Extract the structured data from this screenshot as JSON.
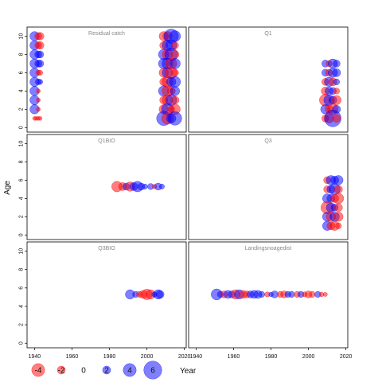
{
  "chart_data": {
    "type": "scatter",
    "subtype": "bubble-residuals",
    "xlabel": "Year",
    "ylabel": "Age",
    "xlim": [
      1936,
      2021
    ],
    "ylim": [
      -0.5,
      11
    ],
    "x_ticks": [
      1940,
      1960,
      1980,
      2000,
      2020
    ],
    "y_ticks": [
      0,
      2,
      4,
      6,
      8,
      10
    ],
    "colors": {
      "positive": "#0000ff",
      "negative": "#ff0000"
    },
    "grid": false,
    "panels": [
      {
        "title": "Residual catch",
        "points": [
          {
            "x": 1940,
            "y": 10,
            "v": 2.5
          },
          {
            "x": 1942,
            "y": 10,
            "v": -1.6
          },
          {
            "x": 1943,
            "y": 10,
            "v": -1.8
          },
          {
            "x": 1940,
            "y": 9,
            "v": 2.5
          },
          {
            "x": 1942,
            "y": 9,
            "v": -1.6
          },
          {
            "x": 1943,
            "y": 9,
            "v": -1.8
          },
          {
            "x": 1940,
            "y": 8,
            "v": 2.5
          },
          {
            "x": 1942,
            "y": 8,
            "v": 1.6
          },
          {
            "x": 1943,
            "y": 8,
            "v": 1.6
          },
          {
            "x": 1940,
            "y": 7,
            "v": 2.5
          },
          {
            "x": 1942,
            "y": 7,
            "v": 1.6
          },
          {
            "x": 1943,
            "y": 7,
            "v": 1.6
          },
          {
            "x": 1940,
            "y": 6,
            "v": 2.5
          },
          {
            "x": 1942,
            "y": 6,
            "v": -0.8
          },
          {
            "x": 1943,
            "y": 6,
            "v": -0.8
          },
          {
            "x": 1940,
            "y": 5,
            "v": 2.5
          },
          {
            "x": 1942,
            "y": 5,
            "v": 1.1
          },
          {
            "x": 1943,
            "y": 5,
            "v": 0.8
          },
          {
            "x": 1940,
            "y": 4,
            "v": 2.5
          },
          {
            "x": 1942,
            "y": 4,
            "v": -0.4
          },
          {
            "x": 1940,
            "y": 3,
            "v": 2.5
          },
          {
            "x": 1942,
            "y": 3,
            "v": -0.4
          },
          {
            "x": 1940,
            "y": 2,
            "v": 2.5
          },
          {
            "x": 1942,
            "y": 2,
            "v": -0.4
          },
          {
            "x": 1940,
            "y": 1,
            "v": -0.3
          },
          {
            "x": 1941,
            "y": 1,
            "v": -0.3
          },
          {
            "x": 1942,
            "y": 1,
            "v": -0.3
          },
          {
            "x": 1943,
            "y": 1,
            "v": -0.3
          },
          {
            "x": 2009,
            "y": 10,
            "v": -2.5
          },
          {
            "x": 2011,
            "y": 10,
            "v": -2.5
          },
          {
            "x": 2013,
            "y": 10,
            "v": 4.5
          },
          {
            "x": 2015,
            "y": 10,
            "v": 3.2
          },
          {
            "x": 2009,
            "y": 9,
            "v": -2
          },
          {
            "x": 2011,
            "y": 9,
            "v": 3
          },
          {
            "x": 2013,
            "y": 9,
            "v": 3.2
          },
          {
            "x": 2015,
            "y": 9,
            "v": -1.6
          },
          {
            "x": 2009,
            "y": 8,
            "v": 3
          },
          {
            "x": 2011,
            "y": 8,
            "v": -3
          },
          {
            "x": 2013,
            "y": 8,
            "v": 4
          },
          {
            "x": 2015,
            "y": 8,
            "v": -2
          },
          {
            "x": 2009,
            "y": 7,
            "v": 3
          },
          {
            "x": 2011,
            "y": 7,
            "v": 3.2
          },
          {
            "x": 2013,
            "y": 7,
            "v": -3.2
          },
          {
            "x": 2015,
            "y": 7,
            "v": 3
          },
          {
            "x": 2009,
            "y": 6,
            "v": -2.5
          },
          {
            "x": 2011,
            "y": 6,
            "v": 3
          },
          {
            "x": 2013,
            "y": 6,
            "v": -3.5
          },
          {
            "x": 2015,
            "y": 6,
            "v": -1.6
          },
          {
            "x": 2009,
            "y": 5,
            "v": -2
          },
          {
            "x": 2011,
            "y": 5,
            "v": -3.2
          },
          {
            "x": 2013,
            "y": 5,
            "v": 2.5
          },
          {
            "x": 2015,
            "y": 5,
            "v": 3.2
          },
          {
            "x": 2009,
            "y": 4,
            "v": 3
          },
          {
            "x": 2011,
            "y": 4,
            "v": -3.2
          },
          {
            "x": 2013,
            "y": 4,
            "v": -2
          },
          {
            "x": 2015,
            "y": 4,
            "v": 2.5
          },
          {
            "x": 2009,
            "y": 3,
            "v": -2
          },
          {
            "x": 2011,
            "y": 3,
            "v": -3
          },
          {
            "x": 2013,
            "y": 3,
            "v": 3.2
          },
          {
            "x": 2015,
            "y": 3,
            "v": -2
          },
          {
            "x": 2009,
            "y": 2,
            "v": -2.5
          },
          {
            "x": 2011,
            "y": 2,
            "v": 3.5
          },
          {
            "x": 2013,
            "y": 2,
            "v": -1.6
          },
          {
            "x": 2015,
            "y": 2,
            "v": -3
          },
          {
            "x": 2009,
            "y": 1,
            "v": 4.5
          },
          {
            "x": 2011,
            "y": 1,
            "v": -3.5
          },
          {
            "x": 2013,
            "y": 1,
            "v": 2.5
          },
          {
            "x": 2015,
            "y": 1,
            "v": 4.2
          }
        ]
      },
      {
        "title": "Q1",
        "points": [
          {
            "x": 2009,
            "y": 7,
            "v": 1.6
          },
          {
            "x": 2011,
            "y": 7,
            "v": -1.2
          },
          {
            "x": 2013,
            "y": 7,
            "v": 2.5
          },
          {
            "x": 2015,
            "y": 7,
            "v": 1.6
          },
          {
            "x": 2009,
            "y": 6,
            "v": 1.6
          },
          {
            "x": 2011,
            "y": 6,
            "v": -1.6
          },
          {
            "x": 2013,
            "y": 6,
            "v": 2.5
          },
          {
            "x": 2015,
            "y": 6,
            "v": 2
          },
          {
            "x": 2009,
            "y": 5,
            "v": -1.6
          },
          {
            "x": 2011,
            "y": 5,
            "v": 2.5
          },
          {
            "x": 2013,
            "y": 5,
            "v": -2
          },
          {
            "x": 2015,
            "y": 5,
            "v": 1.2
          },
          {
            "x": 2009,
            "y": 4,
            "v": -2
          },
          {
            "x": 2011,
            "y": 4,
            "v": 2
          },
          {
            "x": 2013,
            "y": 4,
            "v": 1.6
          },
          {
            "x": 2015,
            "y": 4,
            "v": -1.2
          },
          {
            "x": 2009,
            "y": 3,
            "v": -3.5
          },
          {
            "x": 2011,
            "y": 3,
            "v": 3
          },
          {
            "x": 2013,
            "y": 3,
            "v": 2
          },
          {
            "x": 2015,
            "y": 3,
            "v": -2.5
          },
          {
            "x": 2009,
            "y": 2,
            "v": 2.5
          },
          {
            "x": 2011,
            "y": 2,
            "v": -2
          },
          {
            "x": 2013,
            "y": 2,
            "v": -3
          },
          {
            "x": 2015,
            "y": 2,
            "v": 2
          },
          {
            "x": 2009,
            "y": 1,
            "v": -1.6
          },
          {
            "x": 2011,
            "y": 1,
            "v": -2.5
          },
          {
            "x": 2013,
            "y": 1,
            "v": 5.5
          },
          {
            "x": 2015,
            "y": 1,
            "v": -2
          }
        ]
      },
      {
        "title": "Q1BIO",
        "points": [
          {
            "x": 1984,
            "y": 5.3,
            "v": -3
          },
          {
            "x": 1987,
            "y": 5.3,
            "v": -2
          },
          {
            "x": 1989,
            "y": 5.3,
            "v": 1.6
          },
          {
            "x": 1991,
            "y": 5.3,
            "v": -2.5
          },
          {
            "x": 1993,
            "y": 5.3,
            "v": 2
          },
          {
            "x": 1995,
            "y": 5.3,
            "v": 3
          },
          {
            "x": 1997,
            "y": 5.3,
            "v": 1.6
          },
          {
            "x": 1999,
            "y": 5.3,
            "v": 0.8
          },
          {
            "x": 2002,
            "y": 5.3,
            "v": 1.2
          },
          {
            "x": 2004,
            "y": 5.3,
            "v": -0.6
          },
          {
            "x": 2006,
            "y": 5.3,
            "v": 1.6
          },
          {
            "x": 2008,
            "y": 5.3,
            "v": 0.8
          }
        ]
      },
      {
        "title": "Q3",
        "points": [
          {
            "x": 2010,
            "y": 6,
            "v": -1.6
          },
          {
            "x": 2012,
            "y": 6,
            "v": 2.5
          },
          {
            "x": 2014,
            "y": 6,
            "v": 2
          },
          {
            "x": 2016,
            "y": 6,
            "v": 2.5
          },
          {
            "x": 2010,
            "y": 5,
            "v": -1.6
          },
          {
            "x": 2012,
            "y": 5,
            "v": 2
          },
          {
            "x": 2014,
            "y": 5,
            "v": 3.2
          },
          {
            "x": 2016,
            "y": 5,
            "v": -2
          },
          {
            "x": 2010,
            "y": 4,
            "v": 2.5
          },
          {
            "x": 2012,
            "y": 4,
            "v": 2
          },
          {
            "x": 2014,
            "y": 4,
            "v": -2
          },
          {
            "x": 2016,
            "y": 4,
            "v": -3
          },
          {
            "x": 2010,
            "y": 3,
            "v": -3.8
          },
          {
            "x": 2012,
            "y": 3,
            "v": 2.5
          },
          {
            "x": 2014,
            "y": 3,
            "v": 1.6
          },
          {
            "x": 2016,
            "y": 3,
            "v": -2
          },
          {
            "x": 2010,
            "y": 2,
            "v": 2.5
          },
          {
            "x": 2012,
            "y": 2,
            "v": -2.5
          },
          {
            "x": 2014,
            "y": 2,
            "v": 2.5
          },
          {
            "x": 2016,
            "y": 2,
            "v": -2.5
          },
          {
            "x": 2010,
            "y": 1,
            "v": 2.5
          },
          {
            "x": 2012,
            "y": 1,
            "v": -2
          },
          {
            "x": 2014,
            "y": 1,
            "v": -2.5
          },
          {
            "x": 2016,
            "y": 1,
            "v": -1.2
          }
        ]
      },
      {
        "title": "Q3BIO",
        "points": [
          {
            "x": 1991,
            "y": 5.3,
            "v": 2.5
          },
          {
            "x": 1994,
            "y": 5.3,
            "v": 1.2
          },
          {
            "x": 1996,
            "y": 5.3,
            "v": -1.2
          },
          {
            "x": 1998,
            "y": 5.3,
            "v": -2
          },
          {
            "x": 2000,
            "y": 5.3,
            "v": -3
          },
          {
            "x": 2002,
            "y": 5.3,
            "v": -2.5
          },
          {
            "x": 2004,
            "y": 5.3,
            "v": 0.8
          },
          {
            "x": 2006,
            "y": 5.3,
            "v": 2.5
          },
          {
            "x": 2007,
            "y": 5.3,
            "v": 2
          }
        ]
      },
      {
        "title": "Landingsnoagedist",
        "points": [
          {
            "x": 1951,
            "y": 5.3,
            "v": 3.2
          },
          {
            "x": 1953,
            "y": 5.3,
            "v": 1.2
          },
          {
            "x": 1955,
            "y": 5.3,
            "v": -1.6
          },
          {
            "x": 1957,
            "y": 5.3,
            "v": 2
          },
          {
            "x": 1959,
            "y": 5.3,
            "v": 1.6
          },
          {
            "x": 1961,
            "y": 5.3,
            "v": -2.5
          },
          {
            "x": 1963,
            "y": 5.3,
            "v": 2.5
          },
          {
            "x": 1965,
            "y": 5.3,
            "v": -2
          },
          {
            "x": 1967,
            "y": 5.3,
            "v": -1.6
          },
          {
            "x": 1969,
            "y": 5.3,
            "v": 1.6
          },
          {
            "x": 1971,
            "y": 5.3,
            "v": 2
          },
          {
            "x": 1973,
            "y": 5.3,
            "v": 2
          },
          {
            "x": 1975,
            "y": 5.3,
            "v": 1.2
          },
          {
            "x": 1978,
            "y": 5.3,
            "v": -0.8
          },
          {
            "x": 1980,
            "y": 5.3,
            "v": 0.6
          },
          {
            "x": 1982,
            "y": 5.3,
            "v": 1.6
          },
          {
            "x": 1985,
            "y": 5.3,
            "v": -1.2
          },
          {
            "x": 1987,
            "y": 5.3,
            "v": -1.6
          },
          {
            "x": 1989,
            "y": 5.3,
            "v": 1.2
          },
          {
            "x": 1991,
            "y": 5.3,
            "v": 1.2
          },
          {
            "x": 1994,
            "y": 5.3,
            "v": -1.2
          },
          {
            "x": 1996,
            "y": 5.3,
            "v": 1.2
          },
          {
            "x": 1998,
            "y": 5.3,
            "v": -0.8
          },
          {
            "x": 2000,
            "y": 5.3,
            "v": -1.6
          },
          {
            "x": 2002,
            "y": 5.3,
            "v": -1.2
          },
          {
            "x": 2005,
            "y": 5.3,
            "v": 1.2
          },
          {
            "x": 2007,
            "y": 5.3,
            "v": -0.6
          },
          {
            "x": 2009,
            "y": 5.3,
            "v": -0.4
          }
        ]
      }
    ],
    "legend": {
      "placement": "bottom-left",
      "entries": [
        {
          "label": "-4",
          "value": -4
        },
        {
          "label": "-2",
          "value": -2
        },
        {
          "label": "0",
          "value": 0
        },
        {
          "label": "2",
          "value": 2
        },
        {
          "label": "4",
          "value": 4
        },
        {
          "label": "6",
          "value": 6
        }
      ]
    }
  }
}
